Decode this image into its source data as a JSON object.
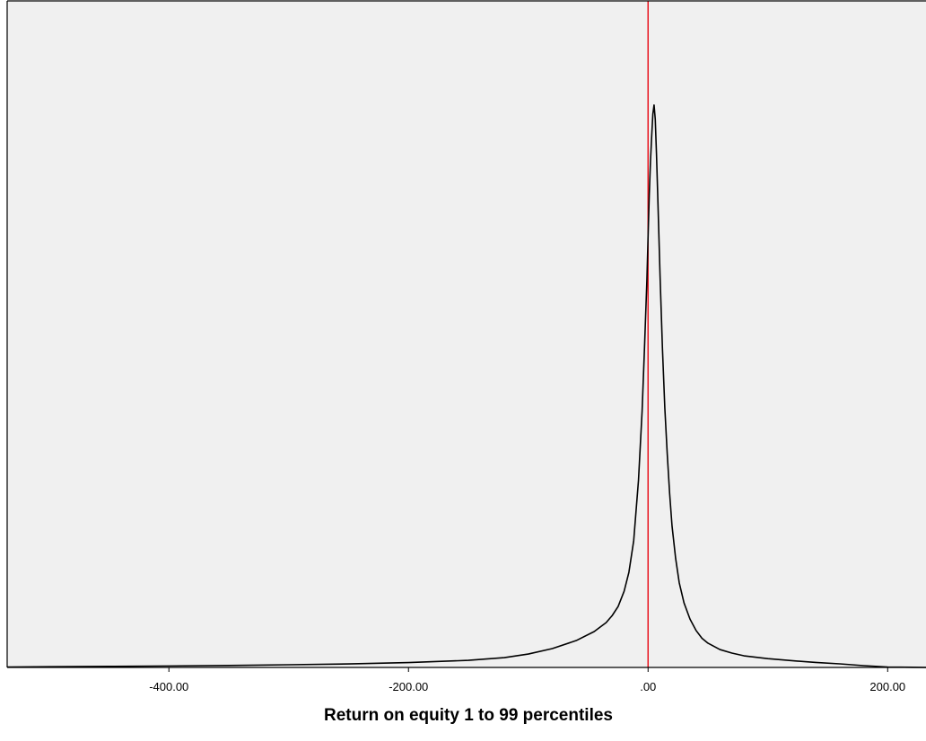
{
  "chart_data": {
    "type": "line",
    "title": "",
    "xlabel": "Return on equity 1 to 99 percentiles",
    "ylabel": "",
    "xlim": [
      -535,
      232
    ],
    "ylim": [
      0,
      1
    ],
    "x_ticks": [
      -400,
      -200,
      0,
      200
    ],
    "x_tick_labels": [
      "-400.00",
      "-200.00",
      ".00",
      "200.00"
    ],
    "y_ticks_shown": false,
    "grid": false,
    "legend": "none",
    "reference_line": {
      "x": 0,
      "color": "#e8141e"
    },
    "plot_background": "#f0f0f0",
    "series": [
      {
        "color": "#000000",
        "x": [
          -535,
          -500,
          -450,
          -400,
          -350,
          -300,
          -250,
          -200,
          -150,
          -120,
          -100,
          -80,
          -60,
          -45,
          -35,
          -30,
          -25,
          -20,
          -16,
          -12,
          -8,
          -5,
          -3,
          -1,
          0,
          1,
          2,
          3,
          4,
          5,
          6,
          7,
          8,
          9,
          10,
          12,
          14,
          16,
          18,
          20,
          23,
          26,
          30,
          35,
          40,
          45,
          50,
          60,
          70,
          80,
          100,
          120,
          140,
          160,
          180,
          200,
          232
        ],
        "y": [
          0.0008,
          0.0013,
          0.0019,
          0.0026,
          0.0035,
          0.0048,
          0.0062,
          0.0086,
          0.0126,
          0.0175,
          0.0238,
          0.0335,
          0.0478,
          0.0638,
          0.0797,
          0.0921,
          0.1084,
          0.1355,
          0.1692,
          0.2253,
          0.3329,
          0.455,
          0.5675,
          0.6879,
          0.7657,
          0.8404,
          0.8993,
          0.9438,
          0.9841,
          1.0,
          0.9745,
          0.9139,
          0.8436,
          0.7699,
          0.6963,
          0.5669,
          0.4605,
          0.3797,
          0.3092,
          0.2516,
          0.1939,
          0.1507,
          0.1147,
          0.0859,
          0.0659,
          0.0518,
          0.0431,
          0.0318,
          0.0255,
          0.0207,
          0.0157,
          0.012,
          0.0088,
          0.0064,
          0.0032,
          0.0008,
          0.0
        ]
      }
    ]
  }
}
